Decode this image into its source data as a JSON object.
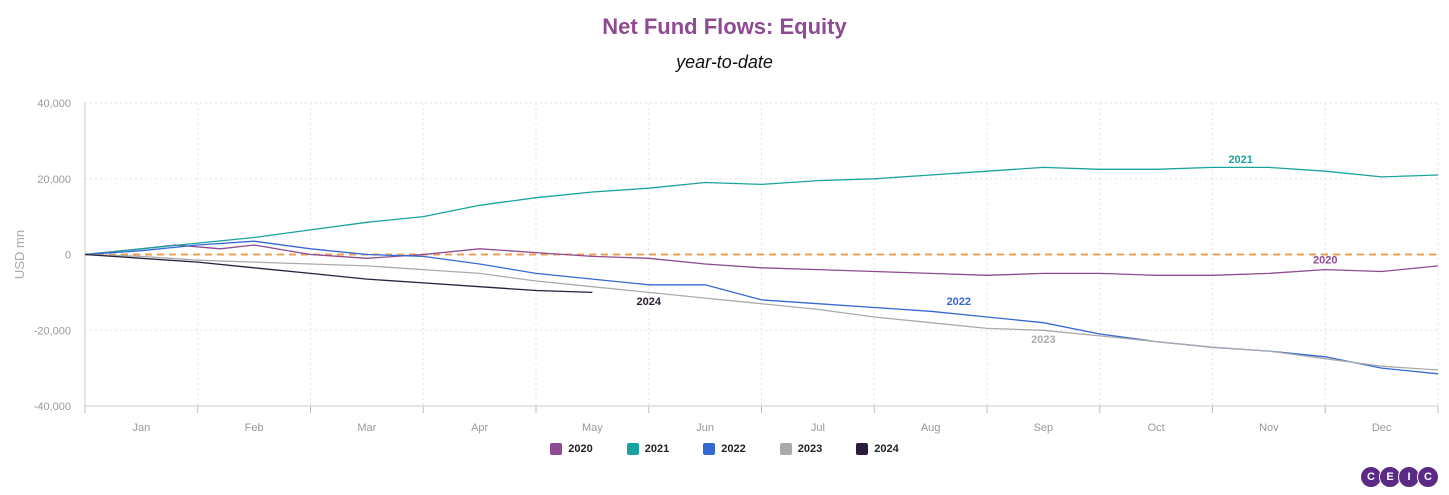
{
  "chart_data": {
    "type": "line",
    "title": "Net Fund Flows: Equity",
    "subtitle": "year-to-date",
    "ylabel": "USD mn",
    "xlabel": "",
    "ylim": [
      -40000,
      40000
    ],
    "yticks": [
      40000,
      20000,
      0,
      -20000,
      -40000
    ],
    "ytick_labels": [
      "40,000",
      "20,000",
      "0",
      "-20,000",
      "-40,000"
    ],
    "x_unit": "month",
    "xlim": [
      0,
      12
    ],
    "xtick_labels": [
      "Jan",
      "Feb",
      "Mar",
      "Apr",
      "May",
      "Jun",
      "Jul",
      "Aug",
      "Sep",
      "Oct",
      "Nov",
      "Dec"
    ],
    "grid": true,
    "zero_line": {
      "value": 0,
      "color": "#f0a04b",
      "style": "dashed"
    },
    "legend_position": "bottom",
    "series": [
      {
        "name": "2020",
        "color": "#8e4a92",
        "label": "2020",
        "points": [
          [
            0,
            0
          ],
          [
            0.5,
            1500
          ],
          [
            0.8,
            2500
          ],
          [
            1.2,
            1500
          ],
          [
            1.5,
            2500
          ],
          [
            2.0,
            0
          ],
          [
            2.5,
            -1000
          ],
          [
            3.0,
            0
          ],
          [
            3.5,
            1500
          ],
          [
            4.0,
            500
          ],
          [
            4.5,
            -500
          ],
          [
            5.0,
            -1000
          ],
          [
            5.5,
            -2500
          ],
          [
            6.0,
            -3500
          ],
          [
            6.5,
            -4000
          ],
          [
            7.0,
            -4500
          ],
          [
            7.5,
            -5000
          ],
          [
            8.0,
            -5500
          ],
          [
            8.5,
            -5000
          ],
          [
            9.0,
            -5000
          ],
          [
            9.5,
            -5500
          ],
          [
            10.0,
            -5500
          ],
          [
            10.5,
            -5000
          ],
          [
            11.0,
            -4000
          ],
          [
            11.5,
            -4500
          ],
          [
            12.0,
            -3000
          ]
        ]
      },
      {
        "name": "2021",
        "color": "#1aa39e",
        "label": "2021",
        "points": [
          [
            0,
            0
          ],
          [
            0.5,
            1500
          ],
          [
            1.0,
            3000
          ],
          [
            1.5,
            4500
          ],
          [
            2.0,
            6500
          ],
          [
            2.5,
            8500
          ],
          [
            3.0,
            10000
          ],
          [
            3.5,
            13000
          ],
          [
            4.0,
            15000
          ],
          [
            4.5,
            16500
          ],
          [
            5.0,
            17500
          ],
          [
            5.5,
            19000
          ],
          [
            6.0,
            18500
          ],
          [
            6.5,
            19500
          ],
          [
            7.0,
            20000
          ],
          [
            7.5,
            21000
          ],
          [
            8.0,
            22000
          ],
          [
            8.5,
            23000
          ],
          [
            9.0,
            22500
          ],
          [
            9.5,
            22500
          ],
          [
            10.0,
            23000
          ],
          [
            10.5,
            23000
          ],
          [
            11.0,
            22000
          ],
          [
            11.5,
            20500
          ],
          [
            12.0,
            21000
          ]
        ]
      },
      {
        "name": "2022",
        "color": "#3568d4",
        "label": "2022",
        "points": [
          [
            0,
            0
          ],
          [
            0.5,
            1000
          ],
          [
            1.0,
            2500
          ],
          [
            1.5,
            3500
          ],
          [
            2.0,
            1500
          ],
          [
            2.5,
            0
          ],
          [
            3.0,
            -500
          ],
          [
            3.5,
            -2500
          ],
          [
            4.0,
            -5000
          ],
          [
            4.5,
            -6500
          ],
          [
            5.0,
            -8000
          ],
          [
            5.5,
            -8000
          ],
          [
            6.0,
            -12000
          ],
          [
            6.5,
            -13000
          ],
          [
            7.0,
            -14000
          ],
          [
            7.5,
            -15000
          ],
          [
            8.0,
            -16500
          ],
          [
            8.5,
            -18000
          ],
          [
            9.0,
            -21000
          ],
          [
            9.5,
            -23000
          ],
          [
            10.0,
            -24500
          ],
          [
            10.5,
            -25500
          ],
          [
            11.0,
            -27000
          ],
          [
            11.5,
            -30000
          ],
          [
            12.0,
            -31500
          ]
        ]
      },
      {
        "name": "2023",
        "color": "#aaaaaa",
        "label": "2023",
        "points": [
          [
            0,
            0
          ],
          [
            0.5,
            -500
          ],
          [
            1.0,
            -1500
          ],
          [
            1.5,
            -2000
          ],
          [
            2.0,
            -2500
          ],
          [
            2.5,
            -3000
          ],
          [
            3.0,
            -4000
          ],
          [
            3.5,
            -5000
          ],
          [
            4.0,
            -7000
          ],
          [
            4.5,
            -8500
          ],
          [
            5.0,
            -10000
          ],
          [
            5.5,
            -11500
          ],
          [
            6.0,
            -13000
          ],
          [
            6.5,
            -14500
          ],
          [
            7.0,
            -16500
          ],
          [
            7.5,
            -18000
          ],
          [
            8.0,
            -19500
          ],
          [
            8.5,
            -20000
          ],
          [
            9.0,
            -21500
          ],
          [
            9.5,
            -23000
          ],
          [
            10.0,
            -24500
          ],
          [
            10.5,
            -25500
          ],
          [
            11.0,
            -27500
          ],
          [
            11.5,
            -29500
          ],
          [
            12.0,
            -30500
          ]
        ]
      },
      {
        "name": "2024",
        "color": "#2b1d3d",
        "label": "2024",
        "points": [
          [
            0,
            0
          ],
          [
            0.5,
            -1000
          ],
          [
            1.0,
            -2000
          ],
          [
            1.5,
            -3500
          ],
          [
            2.0,
            -5000
          ],
          [
            2.5,
            -6500
          ],
          [
            3.0,
            -7500
          ],
          [
            3.5,
            -8500
          ],
          [
            4.0,
            -9500
          ],
          [
            4.5,
            -10000
          ]
        ]
      }
    ],
    "series_labels": [
      {
        "text": "2021",
        "x": 10.25,
        "y": 24200,
        "color": "#1aa39e"
      },
      {
        "text": "2020",
        "x": 11.0,
        "y": -2400,
        "color": "#8e4a92"
      },
      {
        "text": "2022",
        "x": 7.75,
        "y": -13300,
        "color": "#3568d4"
      },
      {
        "text": "2023",
        "x": 8.5,
        "y": -23400,
        "color": "#aaaaaa"
      },
      {
        "text": "2024",
        "x": 5.0,
        "y": -13300,
        "color": "#2b1d3d"
      }
    ]
  },
  "legend": [
    {
      "label": "2020",
      "color": "#8e4a92"
    },
    {
      "label": "2021",
      "color": "#1aa39e"
    },
    {
      "label": "2022",
      "color": "#3568d4"
    },
    {
      "label": "2023",
      "color": "#aaaaaa"
    },
    {
      "label": "2024",
      "color": "#2b1d3d"
    }
  ],
  "logo": {
    "letters": [
      "C",
      "E",
      "I",
      "C"
    ]
  }
}
